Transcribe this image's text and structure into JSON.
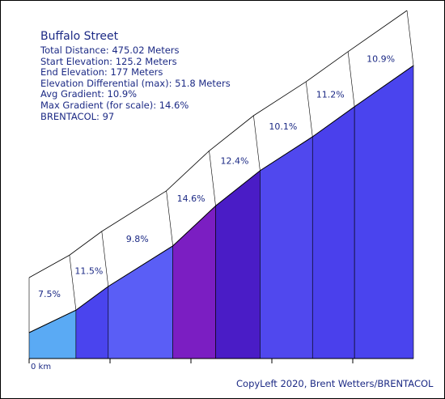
{
  "chart_data": {
    "type": "area",
    "title": "Buffalo Street",
    "info_lines": [
      "Total Distance: 475.02 Meters",
      "Start Elevation: 125.2 Meters",
      "End Elevation: 177 Meters",
      "Elevation Differential (max): 51.8 Meters",
      "Avg Gradient: 10.9%",
      "Max Gradient (for scale): 14.6%",
      "BRENTACOL: 97"
    ],
    "x_start_label": "0 km",
    "segments": [
      {
        "gradient": 7.5,
        "label": "7.5%",
        "color": "#5aaaf4"
      },
      {
        "gradient": 11.5,
        "label": "11.5%",
        "color": "#4a44ee"
      },
      {
        "gradient": 9.8,
        "label": "9.8%",
        "color": "#5a5ef6"
      },
      {
        "gradient": 14.6,
        "label": "14.6%",
        "color": "#7b1ec2"
      },
      {
        "gradient": 12.4,
        "label": "12.4%",
        "color": "#4a1cc6"
      },
      {
        "gradient": 10.1,
        "label": "10.1%",
        "color": "#5048ee"
      },
      {
        "gradient": 11.2,
        "label": "11.2%",
        "color": "#4a40ec"
      },
      {
        "gradient": 10.9,
        "label": "10.9%",
        "color": "#4a44ee"
      }
    ]
  },
  "credit": "CopyLeft 2020, Brent Wetters/BRENTACOL"
}
